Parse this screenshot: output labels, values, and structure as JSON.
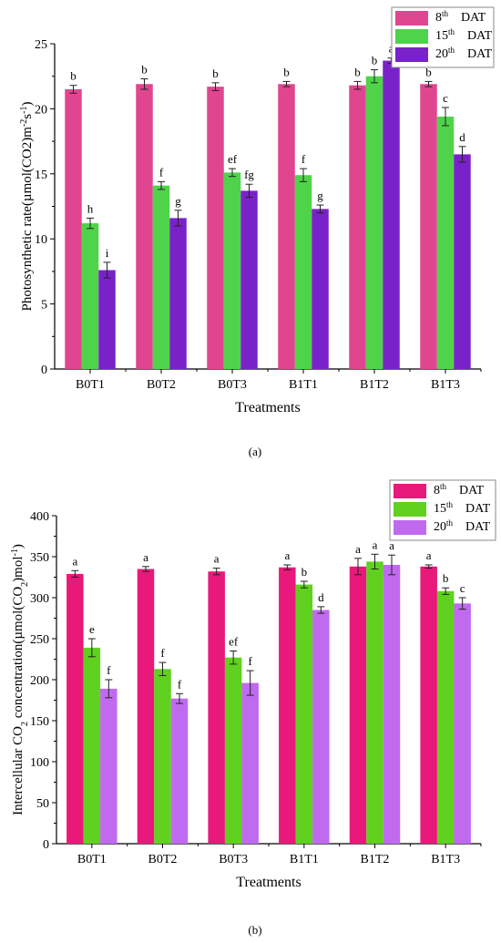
{
  "figure": {
    "panel_a_caption": "(a)",
    "panel_b_caption": "(b)"
  },
  "chart_data": [
    {
      "type": "bar",
      "categories": [
        "B0T1",
        "B0T2",
        "B0T3",
        "B1T1",
        "B1T2",
        "B1T3"
      ],
      "xlabel": "Treatments",
      "ylabel_main": "Photosynthetic rate(",
      "ylabel_mu": "µ",
      "ylabel_tail1": "mol(CO2)m",
      "ylabel_exp1": "-2",
      "ylabel_s": "s",
      "ylabel_exp2": "-1",
      "ylabel_close": ")",
      "ylim": [
        0,
        25
      ],
      "yticks": [
        0,
        5,
        10,
        15,
        20,
        25
      ],
      "legend_position": "top-right",
      "series": [
        {
          "name_pre": "8",
          "name_sup": "th",
          "name_post": "DAT",
          "color": "#e0468f",
          "values": [
            21.5,
            21.9,
            21.7,
            21.9,
            21.8,
            21.9
          ],
          "errors": [
            0.3,
            0.4,
            0.3,
            0.2,
            0.3,
            0.2
          ],
          "letters": [
            "b",
            "b",
            "b",
            "b",
            "b",
            "b"
          ]
        },
        {
          "name_pre": "15",
          "name_sup": "th",
          "name_post": "DAT",
          "color": "#4fd34a",
          "values": [
            11.2,
            14.1,
            15.1,
            14.9,
            22.5,
            19.4
          ],
          "errors": [
            0.4,
            0.3,
            0.3,
            0.5,
            0.5,
            0.7
          ],
          "letters": [
            "h",
            "f",
            "ef",
            "f",
            "b",
            "c"
          ]
        },
        {
          "name_pre": "20",
          "name_sup": "th",
          "name_post": "DAT",
          "color": "#7a22c9",
          "values": [
            7.6,
            11.6,
            13.7,
            12.3,
            23.7,
            16.5
          ],
          "errors": [
            0.6,
            0.6,
            0.5,
            0.3,
            0.2,
            0.6
          ],
          "letters": [
            "i",
            "g",
            "fg",
            "g",
            "a",
            "d"
          ]
        }
      ]
    },
    {
      "type": "bar",
      "categories": [
        "B0T1",
        "B0T2",
        "B0T3",
        "B1T1",
        "B1T2",
        "B1T3"
      ],
      "xlabel": "Treatments",
      "ylabel_main": "Intercellular CO",
      "ylabel_sub1": "2",
      "ylabel_mid": " concentration(",
      "ylabel_mu": "µ",
      "ylabel_tail1": "mol(CO",
      "ylabel_sub2": "2",
      "ylabel_tail2": ")mol",
      "ylabel_exp1": "-1",
      "ylabel_close": ")",
      "ylim": [
        0,
        400
      ],
      "yticks": [
        0,
        50,
        100,
        150,
        200,
        250,
        300,
        350,
        400
      ],
      "legend_position": "top-right",
      "series": [
        {
          "name_pre": "8",
          "name_sup": "th",
          "name_post": "DAT",
          "color": "#e8197a",
          "values": [
            329,
            335,
            332,
            337,
            338,
            338
          ],
          "errors": [
            4,
            3,
            4,
            3,
            10,
            2
          ],
          "letters": [
            "a",
            "a",
            "a",
            "a",
            "a",
            "a"
          ]
        },
        {
          "name_pre": "15",
          "name_sup": "th",
          "name_post": "DAT",
          "color": "#5fd11e",
          "values": [
            239,
            213,
            227,
            316,
            344,
            308
          ],
          "errors": [
            11,
            8,
            8,
            4,
            9,
            4
          ],
          "letters": [
            "e",
            "f",
            "ef",
            "b",
            "a",
            "b"
          ]
        },
        {
          "name_pre": "20",
          "name_sup": "th",
          "name_post": "DAT",
          "color": "#c06af0",
          "values": [
            189,
            177,
            196,
            285,
            340,
            293
          ],
          "errors": [
            11,
            6,
            15,
            4,
            12,
            7
          ],
          "letters": [
            "f",
            "f",
            "f",
            "d",
            "a",
            "c"
          ]
        }
      ]
    }
  ]
}
